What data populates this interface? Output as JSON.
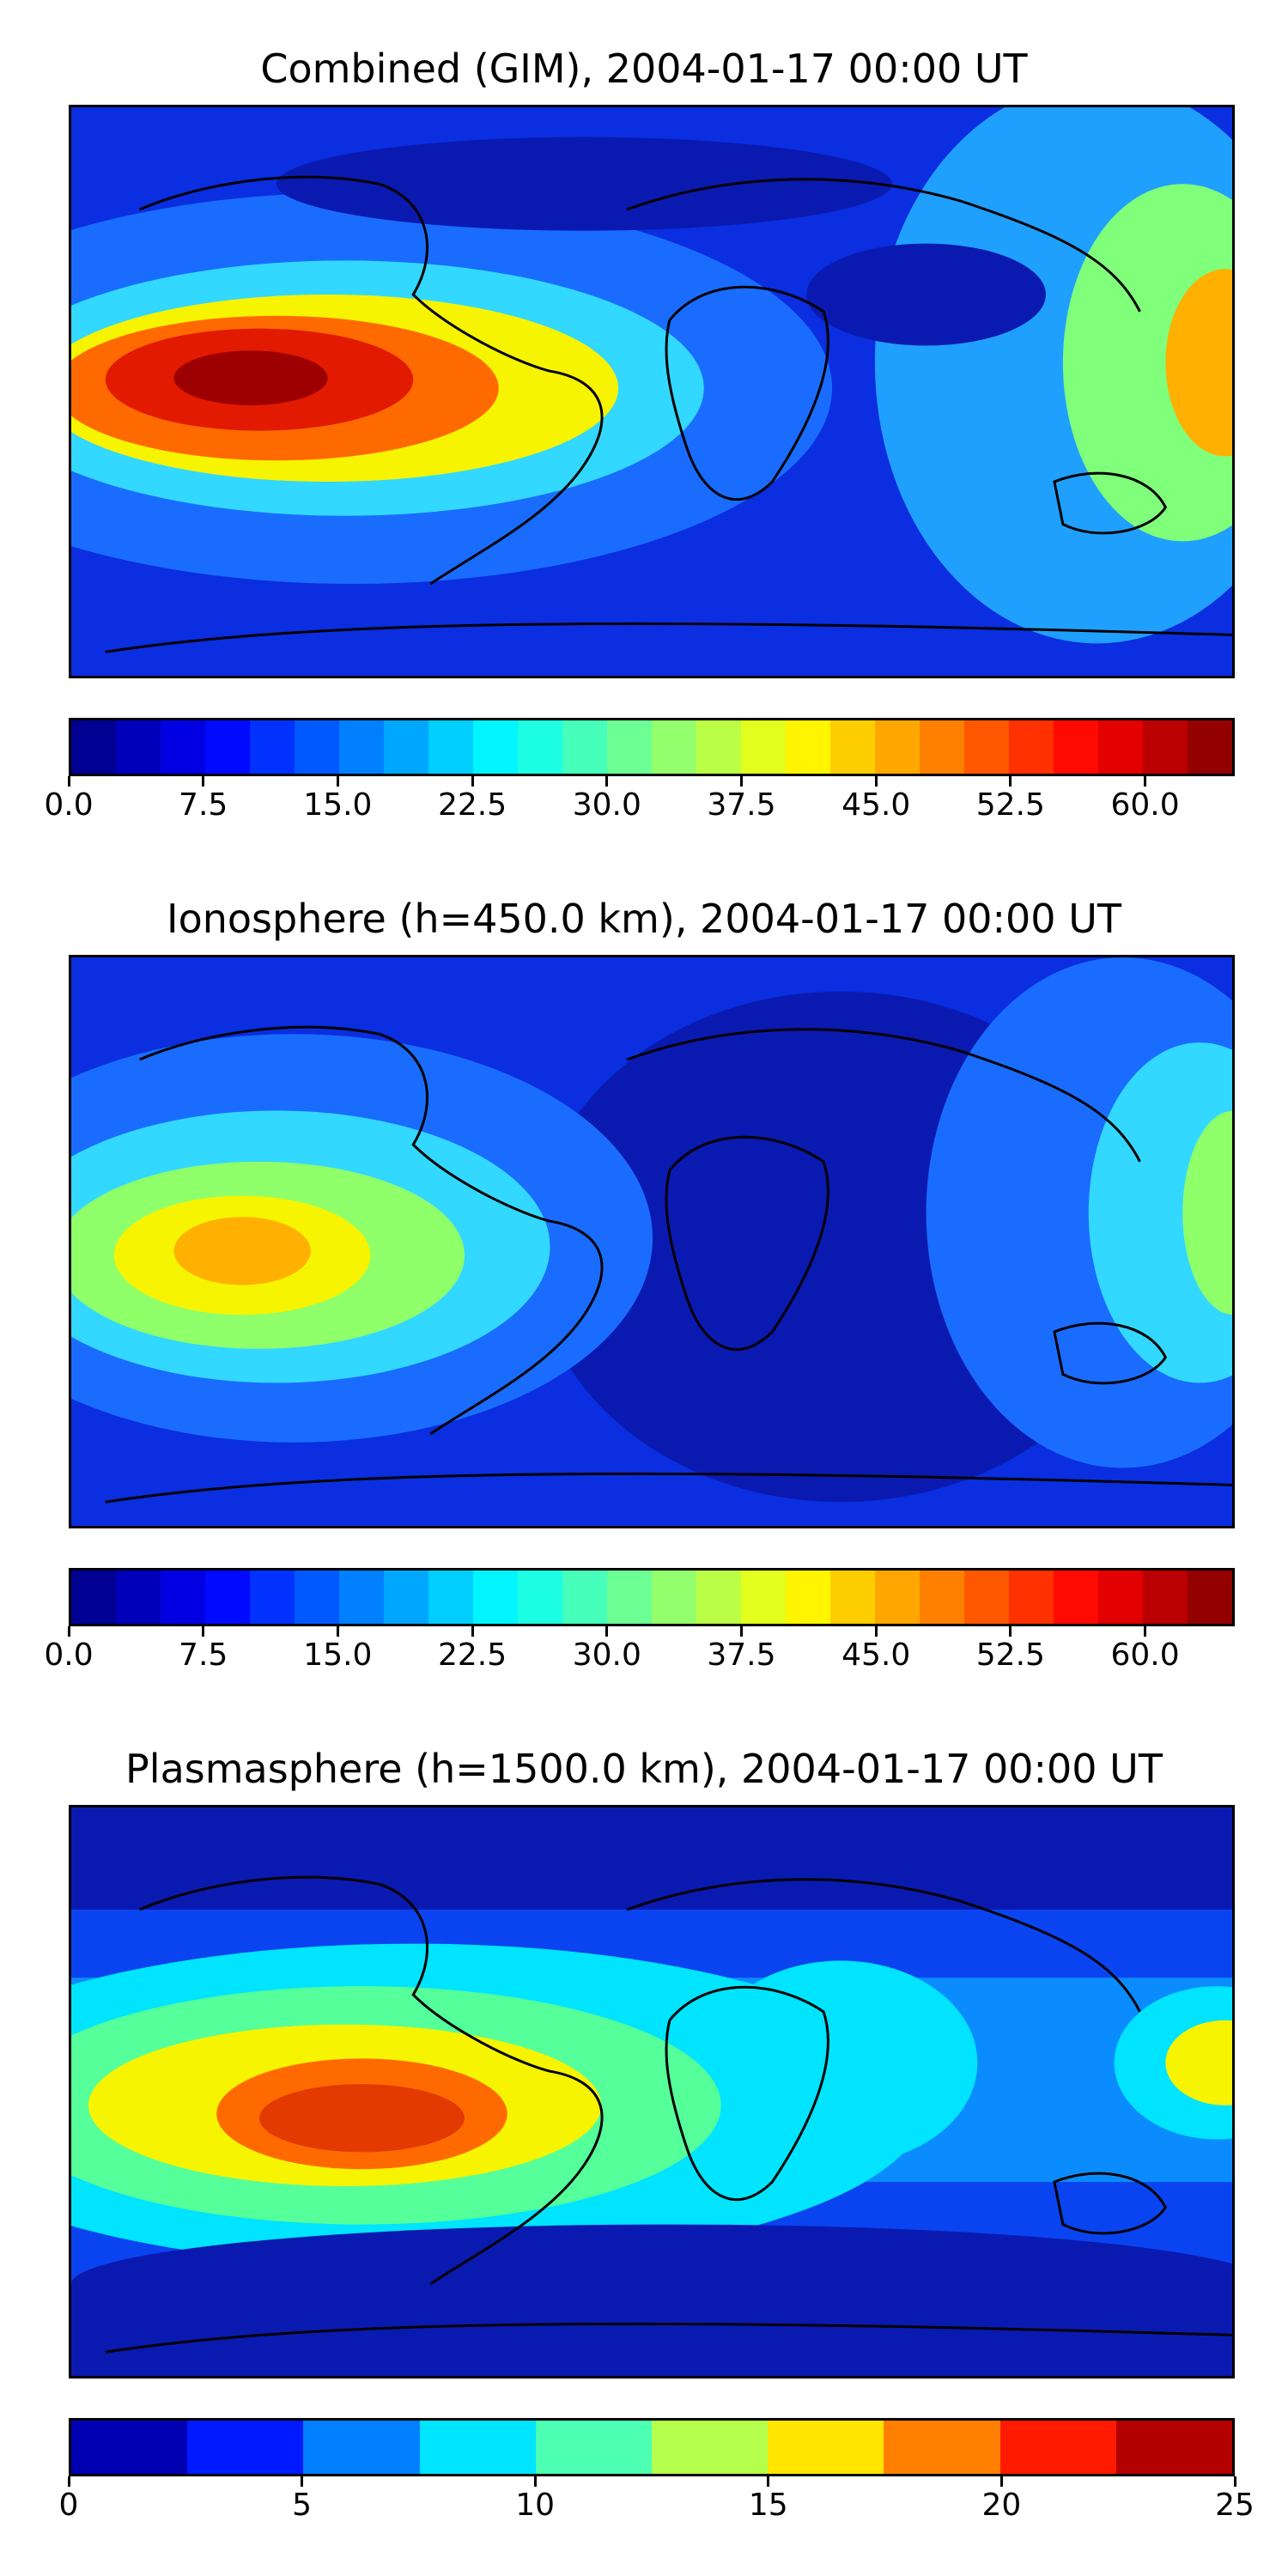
{
  "panels": [
    {
      "title": "Combined (GIM), 2004-01-17 00:00 UT",
      "colorbar": {
        "min": 0,
        "max": 65,
        "levels": 26,
        "ticks": [
          "0.0",
          "7.5",
          "15.0",
          "22.5",
          "30.0",
          "37.5",
          "45.0",
          "52.5",
          "60.0"
        ],
        "tick_values": [
          0,
          7.5,
          15,
          22.5,
          30,
          37.5,
          45,
          52.5,
          60
        ]
      }
    },
    {
      "title": "Ionosphere  (h=450.0 km), 2004-01-17 00:00 UT",
      "colorbar": {
        "min": 0,
        "max": 65,
        "levels": 26,
        "ticks": [
          "0.0",
          "7.5",
          "15.0",
          "22.5",
          "30.0",
          "37.5",
          "45.0",
          "52.5",
          "60.0"
        ],
        "tick_values": [
          0,
          7.5,
          15,
          22.5,
          30,
          37.5,
          45,
          52.5,
          60
        ]
      }
    },
    {
      "title": "Plasmasphere (h=1500.0 km), 2004-01-17 00:00 UT",
      "colorbar": {
        "min": 0,
        "max": 25,
        "levels": 10,
        "ticks": [
          "0",
          "5",
          "10",
          "15",
          "20",
          "25"
        ],
        "tick_values": [
          0,
          5,
          10,
          15,
          20,
          25
        ]
      }
    }
  ],
  "colormap": "jet"
}
